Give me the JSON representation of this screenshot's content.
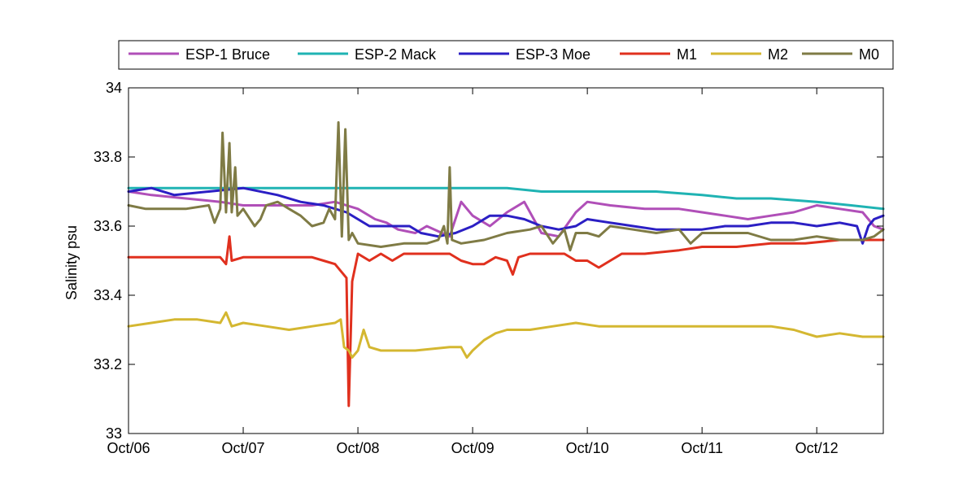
{
  "chart_data": {
    "type": "line",
    "title": "",
    "xlabel": "",
    "ylabel": "Salinity psu",
    "xlim": [
      "2012-10-06",
      "2012-10-12 14:00"
    ],
    "ylim": [
      33,
      34
    ],
    "x_ticks": [
      "Oct/06",
      "Oct/07",
      "Oct/08",
      "Oct/09",
      "Oct/10",
      "Oct/11",
      "Oct/12"
    ],
    "y_ticks": [
      "33",
      "33.2",
      "33.4",
      "33.6",
      "33.8",
      "34"
    ],
    "grid": false,
    "legend_position": "top",
    "series": [
      {
        "name": "ESP-1 Bruce",
        "color": "#b04fb8",
        "points": [
          [
            0.0,
            33.7
          ],
          [
            0.2,
            33.69
          ],
          [
            0.5,
            33.68
          ],
          [
            0.8,
            33.67
          ],
          [
            1.0,
            33.66
          ],
          [
            1.3,
            33.66
          ],
          [
            1.6,
            33.66
          ],
          [
            1.8,
            33.67
          ],
          [
            2.0,
            33.65
          ],
          [
            2.15,
            33.62
          ],
          [
            2.25,
            33.61
          ],
          [
            2.35,
            33.59
          ],
          [
            2.5,
            33.58
          ],
          [
            2.6,
            33.6
          ],
          [
            2.8,
            33.57
          ],
          [
            2.9,
            33.67
          ],
          [
            3.0,
            33.63
          ],
          [
            3.15,
            33.6
          ],
          [
            3.3,
            33.64
          ],
          [
            3.45,
            33.67
          ],
          [
            3.6,
            33.58
          ],
          [
            3.75,
            33.57
          ],
          [
            3.9,
            33.64
          ],
          [
            4.0,
            33.67
          ],
          [
            4.2,
            33.66
          ],
          [
            4.5,
            33.65
          ],
          [
            4.8,
            33.65
          ],
          [
            5.0,
            33.64
          ],
          [
            5.2,
            33.63
          ],
          [
            5.4,
            33.62
          ],
          [
            5.6,
            33.63
          ],
          [
            5.8,
            33.64
          ],
          [
            6.0,
            33.66
          ],
          [
            6.2,
            33.65
          ],
          [
            6.4,
            33.64
          ],
          [
            6.5,
            33.6
          ],
          [
            6.58,
            33.59
          ]
        ]
      },
      {
        "name": "ESP-2 Mack",
        "color": "#1fb3b3",
        "points": [
          [
            0.0,
            33.71
          ],
          [
            0.3,
            33.71
          ],
          [
            0.6,
            33.71
          ],
          [
            1.0,
            33.71
          ],
          [
            1.3,
            33.71
          ],
          [
            1.6,
            33.71
          ],
          [
            2.0,
            33.71
          ],
          [
            2.3,
            33.71
          ],
          [
            2.6,
            33.71
          ],
          [
            3.0,
            33.71
          ],
          [
            3.3,
            33.71
          ],
          [
            3.6,
            33.7
          ],
          [
            4.0,
            33.7
          ],
          [
            4.3,
            33.7
          ],
          [
            4.6,
            33.7
          ],
          [
            5.0,
            33.69
          ],
          [
            5.3,
            33.68
          ],
          [
            5.6,
            33.68
          ],
          [
            6.0,
            33.67
          ],
          [
            6.3,
            33.66
          ],
          [
            6.58,
            33.65
          ]
        ]
      },
      {
        "name": "ESP-3 Moe",
        "color": "#2b1fc4",
        "points": [
          [
            0.0,
            33.7
          ],
          [
            0.2,
            33.71
          ],
          [
            0.4,
            33.69
          ],
          [
            0.7,
            33.7
          ],
          [
            1.0,
            33.71
          ],
          [
            1.3,
            33.69
          ],
          [
            1.5,
            33.67
          ],
          [
            1.7,
            33.66
          ],
          [
            1.9,
            33.64
          ],
          [
            2.1,
            33.6
          ],
          [
            2.3,
            33.6
          ],
          [
            2.45,
            33.6
          ],
          [
            2.55,
            33.58
          ],
          [
            2.7,
            33.57
          ],
          [
            2.85,
            33.58
          ],
          [
            3.0,
            33.6
          ],
          [
            3.15,
            33.63
          ],
          [
            3.3,
            33.63
          ],
          [
            3.45,
            33.62
          ],
          [
            3.6,
            33.6
          ],
          [
            3.75,
            33.59
          ],
          [
            3.9,
            33.6
          ],
          [
            4.0,
            33.62
          ],
          [
            4.2,
            33.61
          ],
          [
            4.4,
            33.6
          ],
          [
            4.6,
            33.59
          ],
          [
            4.8,
            33.59
          ],
          [
            5.0,
            33.59
          ],
          [
            5.2,
            33.6
          ],
          [
            5.4,
            33.6
          ],
          [
            5.6,
            33.61
          ],
          [
            5.8,
            33.61
          ],
          [
            6.0,
            33.6
          ],
          [
            6.2,
            33.61
          ],
          [
            6.35,
            33.6
          ],
          [
            6.4,
            33.55
          ],
          [
            6.45,
            33.6
          ],
          [
            6.5,
            33.62
          ],
          [
            6.58,
            33.63
          ]
        ]
      },
      {
        "name": "M1",
        "color": "#e0301e",
        "points": [
          [
            0.0,
            33.51
          ],
          [
            0.3,
            33.51
          ],
          [
            0.6,
            33.51
          ],
          [
            0.8,
            33.51
          ],
          [
            0.85,
            33.49
          ],
          [
            0.88,
            33.57
          ],
          [
            0.9,
            33.5
          ],
          [
            1.0,
            33.51
          ],
          [
            1.3,
            33.51
          ],
          [
            1.6,
            33.51
          ],
          [
            1.7,
            33.5
          ],
          [
            1.8,
            33.49
          ],
          [
            1.9,
            33.45
          ],
          [
            1.92,
            33.08
          ],
          [
            1.95,
            33.44
          ],
          [
            2.0,
            33.52
          ],
          [
            2.1,
            33.5
          ],
          [
            2.2,
            33.52
          ],
          [
            2.3,
            33.5
          ],
          [
            2.4,
            33.52
          ],
          [
            2.5,
            33.52
          ],
          [
            2.7,
            33.52
          ],
          [
            2.8,
            33.52
          ],
          [
            2.9,
            33.5
          ],
          [
            3.0,
            33.49
          ],
          [
            3.1,
            33.49
          ],
          [
            3.2,
            33.51
          ],
          [
            3.3,
            33.5
          ],
          [
            3.35,
            33.46
          ],
          [
            3.4,
            33.51
          ],
          [
            3.5,
            33.52
          ],
          [
            3.7,
            33.52
          ],
          [
            3.8,
            33.52
          ],
          [
            3.9,
            33.5
          ],
          [
            4.0,
            33.5
          ],
          [
            4.1,
            33.48
          ],
          [
            4.2,
            33.5
          ],
          [
            4.3,
            33.52
          ],
          [
            4.5,
            33.52
          ],
          [
            4.8,
            33.53
          ],
          [
            5.0,
            33.54
          ],
          [
            5.3,
            33.54
          ],
          [
            5.6,
            33.55
          ],
          [
            5.9,
            33.55
          ],
          [
            6.2,
            33.56
          ],
          [
            6.4,
            33.56
          ],
          [
            6.58,
            33.56
          ]
        ]
      },
      {
        "name": "M2",
        "color": "#d4b731",
        "points": [
          [
            0.0,
            33.31
          ],
          [
            0.2,
            33.32
          ],
          [
            0.4,
            33.33
          ],
          [
            0.6,
            33.33
          ],
          [
            0.8,
            33.32
          ],
          [
            0.85,
            33.35
          ],
          [
            0.9,
            33.31
          ],
          [
            1.0,
            33.32
          ],
          [
            1.2,
            33.31
          ],
          [
            1.4,
            33.3
          ],
          [
            1.6,
            33.31
          ],
          [
            1.8,
            33.32
          ],
          [
            1.85,
            33.33
          ],
          [
            1.88,
            33.25
          ],
          [
            1.92,
            33.24
          ],
          [
            1.95,
            33.22
          ],
          [
            2.0,
            33.24
          ],
          [
            2.05,
            33.3
          ],
          [
            2.1,
            33.25
          ],
          [
            2.2,
            33.24
          ],
          [
            2.5,
            33.24
          ],
          [
            2.8,
            33.25
          ],
          [
            2.9,
            33.25
          ],
          [
            2.95,
            33.22
          ],
          [
            3.0,
            33.24
          ],
          [
            3.1,
            33.27
          ],
          [
            3.2,
            33.29
          ],
          [
            3.3,
            33.3
          ],
          [
            3.5,
            33.3
          ],
          [
            3.7,
            33.31
          ],
          [
            3.9,
            33.32
          ],
          [
            4.1,
            33.31
          ],
          [
            4.5,
            33.31
          ],
          [
            5.0,
            33.31
          ],
          [
            5.4,
            33.31
          ],
          [
            5.6,
            33.31
          ],
          [
            5.8,
            33.3
          ],
          [
            5.9,
            33.29
          ],
          [
            6.0,
            33.28
          ],
          [
            6.2,
            33.29
          ],
          [
            6.4,
            33.28
          ],
          [
            6.58,
            33.28
          ]
        ]
      },
      {
        "name": "M0",
        "color": "#7f7b45",
        "points": [
          [
            0.0,
            33.66
          ],
          [
            0.15,
            33.65
          ],
          [
            0.3,
            33.65
          ],
          [
            0.5,
            33.65
          ],
          [
            0.7,
            33.66
          ],
          [
            0.75,
            33.61
          ],
          [
            0.8,
            33.65
          ],
          [
            0.82,
            33.87
          ],
          [
            0.85,
            33.64
          ],
          [
            0.88,
            33.84
          ],
          [
            0.9,
            33.64
          ],
          [
            0.93,
            33.77
          ],
          [
            0.95,
            33.63
          ],
          [
            1.0,
            33.65
          ],
          [
            1.1,
            33.6
          ],
          [
            1.15,
            33.62
          ],
          [
            1.2,
            33.66
          ],
          [
            1.3,
            33.67
          ],
          [
            1.4,
            33.65
          ],
          [
            1.5,
            33.63
          ],
          [
            1.6,
            33.6
          ],
          [
            1.7,
            33.61
          ],
          [
            1.75,
            33.65
          ],
          [
            1.8,
            33.62
          ],
          [
            1.83,
            33.9
          ],
          [
            1.86,
            33.57
          ],
          [
            1.89,
            33.88
          ],
          [
            1.92,
            33.56
          ],
          [
            1.95,
            33.58
          ],
          [
            2.0,
            33.55
          ],
          [
            2.2,
            33.54
          ],
          [
            2.4,
            33.55
          ],
          [
            2.6,
            33.55
          ],
          [
            2.7,
            33.56
          ],
          [
            2.75,
            33.6
          ],
          [
            2.78,
            33.55
          ],
          [
            2.8,
            33.77
          ],
          [
            2.82,
            33.56
          ],
          [
            2.9,
            33.55
          ],
          [
            3.1,
            33.56
          ],
          [
            3.3,
            33.58
          ],
          [
            3.5,
            33.59
          ],
          [
            3.6,
            33.6
          ],
          [
            3.7,
            33.55
          ],
          [
            3.8,
            33.59
          ],
          [
            3.85,
            33.53
          ],
          [
            3.9,
            33.58
          ],
          [
            4.0,
            33.58
          ],
          [
            4.1,
            33.57
          ],
          [
            4.2,
            33.6
          ],
          [
            4.4,
            33.59
          ],
          [
            4.6,
            33.58
          ],
          [
            4.8,
            33.59
          ],
          [
            4.9,
            33.55
          ],
          [
            5.0,
            33.58
          ],
          [
            5.2,
            33.58
          ],
          [
            5.4,
            33.58
          ],
          [
            5.6,
            33.56
          ],
          [
            5.8,
            33.56
          ],
          [
            6.0,
            33.57
          ],
          [
            6.2,
            33.56
          ],
          [
            6.4,
            33.56
          ],
          [
            6.5,
            33.57
          ],
          [
            6.58,
            33.59
          ]
        ]
      }
    ]
  }
}
